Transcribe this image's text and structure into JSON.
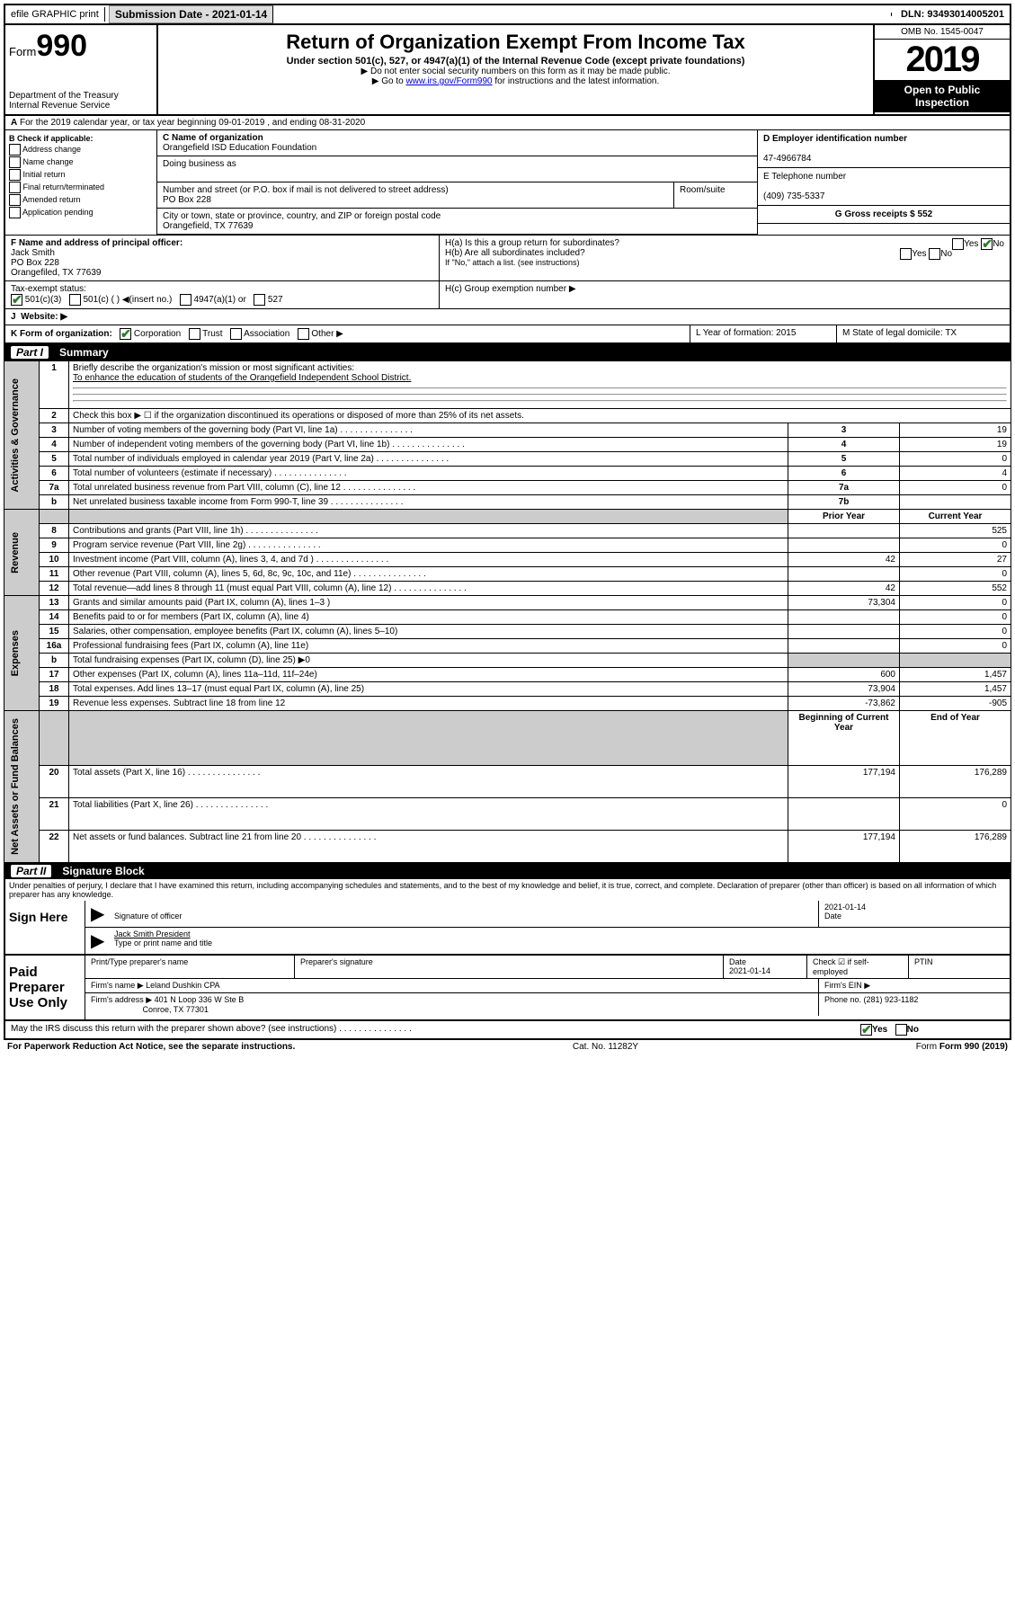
{
  "topbar": {
    "efile": "efile GRAPHIC print",
    "submission_label": "Submission Date - 2021-01-14",
    "dln": "DLN: 93493014005201"
  },
  "header": {
    "form_prefix": "Form",
    "form_num": "990",
    "dept": "Department of the Treasury\nInternal Revenue Service",
    "title": "Return of Organization Exempt From Income Tax",
    "subtitle": "Under section 501(c), 527, or 4947(a)(1) of the Internal Revenue Code (except private foundations)",
    "note1": "▶ Do not enter social security numbers on this form as it may be made public.",
    "note2_pre": "▶ Go to ",
    "note2_link": "www.irs.gov/Form990",
    "note2_post": " for instructions and the latest information.",
    "omb": "OMB No. 1545-0047",
    "year": "2019",
    "inspection": "Open to Public Inspection"
  },
  "period": {
    "text": "For the 2019 calendar year, or tax year beginning 09-01-2019    , and ending 08-31-2020"
  },
  "box_b": {
    "label": "B Check if applicable:",
    "items": [
      "Address change",
      "Name change",
      "Initial return",
      "Final return/terminated",
      "Amended return",
      "Application pending"
    ]
  },
  "box_c": {
    "name_label": "C Name of organization",
    "name": "Orangefield ISD Education Foundation",
    "dba_label": "Doing business as",
    "addr_label": "Number and street (or P.O. box if mail is not delivered to street address)",
    "room_label": "Room/suite",
    "addr": "PO Box 228",
    "city_label": "City or town, state or province, country, and ZIP or foreign postal code",
    "city": "Orangefield, TX  77639"
  },
  "box_d": {
    "label": "D Employer identification number",
    "value": "47-4966784"
  },
  "box_e": {
    "label": "E Telephone number",
    "value": "(409) 735-5337"
  },
  "box_g": {
    "label": "G Gross receipts $ 552"
  },
  "box_f": {
    "label": "F  Name and address of principal officer:",
    "name": "Jack Smith",
    "addr1": "PO Box 228",
    "addr2": "Orangefiled, TX  77639"
  },
  "box_h": {
    "a": "H(a)  Is this a group return for subordinates?",
    "b": "H(b)  Are all subordinates included?",
    "note": "If \"No,\" attach a list. (see instructions)",
    "c": "H(c)  Group exemption number ▶"
  },
  "tax_status": {
    "label": "Tax-exempt status:",
    "o1": "501(c)(3)",
    "o2": "501(c) (  ) ◀(insert no.)",
    "o3": "4947(a)(1) or",
    "o4": "527"
  },
  "box_j": "Website: ▶",
  "box_k": {
    "label": "K Form of organization:",
    "o1": "Corporation",
    "o2": "Trust",
    "o3": "Association",
    "o4": "Other ▶"
  },
  "box_l": "L Year of formation: 2015",
  "box_m": "M State of legal domicile: TX",
  "part1": {
    "label": "Part I",
    "title": "Summary",
    "q1": "Briefly describe the organization's mission or most significant activities:",
    "q1a": "To enhance the education of students of the Orangefield Independent School District.",
    "q2": "Check this box ▶ ☐  if the organization discontinued its operations or disposed of more than 25% of its net assets.",
    "rows_gov": [
      {
        "n": "3",
        "t": "Number of voting members of the governing body (Part VI, line 1a)",
        "l": "3",
        "v": "19"
      },
      {
        "n": "4",
        "t": "Number of independent voting members of the governing body (Part VI, line 1b)",
        "l": "4",
        "v": "19"
      },
      {
        "n": "5",
        "t": "Total number of individuals employed in calendar year 2019 (Part V, line 2a)",
        "l": "5",
        "v": "0"
      },
      {
        "n": "6",
        "t": "Total number of volunteers (estimate if necessary)",
        "l": "6",
        "v": "4"
      },
      {
        "n": "7a",
        "t": "Total unrelated business revenue from Part VIII, column (C), line 12",
        "l": "7a",
        "v": "0"
      },
      {
        "n": "b",
        "t": "Net unrelated business taxable income from Form 990-T, line 39",
        "l": "7b",
        "v": ""
      }
    ],
    "col_headers": {
      "prior": "Prior Year",
      "current": "Current Year"
    },
    "rows_rev": [
      {
        "n": "8",
        "t": "Contributions and grants (Part VIII, line 1h)",
        "p": "",
        "c": "525"
      },
      {
        "n": "9",
        "t": "Program service revenue (Part VIII, line 2g)",
        "p": "",
        "c": "0"
      },
      {
        "n": "10",
        "t": "Investment income (Part VIII, column (A), lines 3, 4, and 7d )",
        "p": "42",
        "c": "27"
      },
      {
        "n": "11",
        "t": "Other revenue (Part VIII, column (A), lines 5, 6d, 8c, 9c, 10c, and 11e)",
        "p": "",
        "c": "0"
      },
      {
        "n": "12",
        "t": "Total revenue—add lines 8 through 11 (must equal Part VIII, column (A), line 12)",
        "p": "42",
        "c": "552"
      }
    ],
    "rows_exp": [
      {
        "n": "13",
        "t": "Grants and similar amounts paid (Part IX, column (A), lines 1–3 )",
        "p": "73,304",
        "c": "0"
      },
      {
        "n": "14",
        "t": "Benefits paid to or for members (Part IX, column (A), line 4)",
        "p": "",
        "c": "0"
      },
      {
        "n": "15",
        "t": "Salaries, other compensation, employee benefits (Part IX, column (A), lines 5–10)",
        "p": "",
        "c": "0"
      },
      {
        "n": "16a",
        "t": "Professional fundraising fees (Part IX, column (A), line 11e)",
        "p": "",
        "c": "0"
      },
      {
        "n": "b",
        "t": "Total fundraising expenses (Part IX, column (D), line 25) ▶0",
        "p": "",
        "c": ""
      },
      {
        "n": "17",
        "t": "Other expenses (Part IX, column (A), lines 11a–11d, 11f–24e)",
        "p": "600",
        "c": "1,457"
      },
      {
        "n": "18",
        "t": "Total expenses. Add lines 13–17 (must equal Part IX, column (A), line 25)",
        "p": "73,904",
        "c": "1,457"
      },
      {
        "n": "19",
        "t": "Revenue less expenses. Subtract line 18 from line 12",
        "p": "-73,862",
        "c": "-905"
      }
    ],
    "col_headers2": {
      "prior": "Beginning of Current Year",
      "current": "End of Year"
    },
    "rows_net": [
      {
        "n": "20",
        "t": "Total assets (Part X, line 16)",
        "p": "177,194",
        "c": "176,289"
      },
      {
        "n": "21",
        "t": "Total liabilities (Part X, line 26)",
        "p": "",
        "c": "0"
      },
      {
        "n": "22",
        "t": "Net assets or fund balances. Subtract line 21 from line 20",
        "p": "177,194",
        "c": "176,289"
      }
    ],
    "side_labels": {
      "gov": "Activities & Governance",
      "rev": "Revenue",
      "exp": "Expenses",
      "net": "Net Assets or Fund Balances"
    }
  },
  "part2": {
    "label": "Part II",
    "title": "Signature Block",
    "perjury": "Under penalties of perjury, I declare that I have examined this return, including accompanying schedules and statements, and to the best of my knowledge and belief, it is true, correct, and complete. Declaration of preparer (other than officer) is based on all information of which preparer has any knowledge."
  },
  "sign": {
    "here": "Sign Here",
    "sig_label": "Signature of officer",
    "date": "2021-01-14",
    "date_label": "Date",
    "name": "Jack Smith President",
    "name_label": "Type or print name and title"
  },
  "paid": {
    "title": "Paid Preparer Use Only",
    "col1": "Print/Type preparer's name",
    "col2": "Preparer's signature",
    "col3": "Date",
    "date": "2021-01-14",
    "col4": "Check ☑ if self-employed",
    "col5": "PTIN",
    "firm_label": "Firm's name    ▶",
    "firm": "Leland Dushkin CPA",
    "ein_label": "Firm's EIN ▶",
    "addr_label": "Firm's address ▶",
    "addr": "401 N Loop 336 W Ste B",
    "addr2": "Conroe, TX  77301",
    "phone_label": "Phone no. (281) 923-1182"
  },
  "discuss": "May the IRS discuss this return with the preparer shown above? (see instructions)",
  "footer": {
    "left": "For Paperwork Reduction Act Notice, see the separate instructions.",
    "mid": "Cat. No. 11282Y",
    "right": "Form 990 (2019)"
  },
  "yesno": {
    "yes": "Yes",
    "no": "No"
  }
}
